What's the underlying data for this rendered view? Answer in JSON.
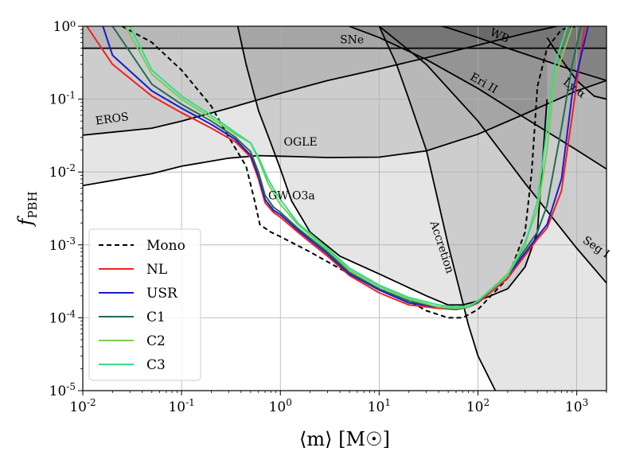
{
  "chart_data": {
    "type": "line",
    "xscale": "log",
    "yscale": "log",
    "xlim": [
      0.01,
      2000
    ],
    "ylim": [
      1e-05,
      1
    ],
    "grid": true,
    "xlabel": "⟨m⟩ [M☉]",
    "ylabel": "fPBH",
    "x_ticks": [
      {
        "base": "10",
        "exp": "-2",
        "value": 0.01
      },
      {
        "base": "10",
        "exp": "-1",
        "value": 0.1
      },
      {
        "base": "10",
        "exp": "0",
        "value": 1
      },
      {
        "base": "10",
        "exp": "1",
        "value": 10
      },
      {
        "base": "10",
        "exp": "2",
        "value": 100
      },
      {
        "base": "10",
        "exp": "3",
        "value": 1000
      }
    ],
    "y_ticks": [
      {
        "base": "10",
        "exp": "-5",
        "value": 1e-05
      },
      {
        "base": "10",
        "exp": "-4",
        "value": 0.0001
      },
      {
        "base": "10",
        "exp": "-3",
        "value": 0.001
      },
      {
        "base": "10",
        "exp": "-2",
        "value": 0.01
      },
      {
        "base": "10",
        "exp": "-1",
        "value": 0.1
      },
      {
        "base": "",
        "exp": "",
        "text": "10⁰",
        "value": 1
      }
    ],
    "constraints": [
      {
        "name": "EROS",
        "label_at": [
          0.02,
          0.048
        ],
        "rotate": -8,
        "x": [
          0.01,
          0.05,
          0.1,
          0.3,
          1,
          3,
          10,
          30,
          100,
          300,
          1000,
          2000
        ],
        "y": [
          0.032,
          0.04,
          0.05,
          0.075,
          0.12,
          0.18,
          0.26,
          0.37,
          0.55,
          0.8,
          1.15,
          1.4
        ]
      },
      {
        "name": "OGLE",
        "label_at": [
          1.6,
          0.023
        ],
        "rotate": 0,
        "x": [
          0.01,
          0.05,
          0.1,
          0.3,
          0.6,
          1,
          3,
          10,
          30,
          100,
          300,
          1000,
          2000
        ],
        "y": [
          0.0065,
          0.0095,
          0.012,
          0.0155,
          0.0168,
          0.0165,
          0.0158,
          0.016,
          0.0195,
          0.033,
          0.063,
          0.13,
          0.18
        ]
      },
      {
        "name": "SNe",
        "label_at": [
          5.3,
          0.58
        ],
        "rotate": 0,
        "x": [
          0.01,
          2000
        ],
        "y": [
          0.5,
          0.5
        ]
      },
      {
        "name": "GW O3a",
        "label_at": [
          1.3,
          0.0042
        ],
        "rotate": 0,
        "x": [
          0.37,
          0.45,
          0.6,
          0.8,
          1,
          1.3,
          2,
          4,
          10,
          30,
          50,
          70,
          100,
          200,
          300,
          400,
          500
        ],
        "y": [
          1,
          0.3,
          0.07,
          0.025,
          0.011,
          0.004,
          0.0015,
          0.0007,
          0.0004,
          0.0002,
          0.00015,
          0.00015,
          0.00017,
          0.00025,
          0.0005,
          0.0015,
          0.1
        ]
      },
      {
        "name": "Accretion",
        "label_at": [
          40,
          0.0009
        ],
        "rotate": 72,
        "x": [
          10,
          15,
          20,
          30,
          50,
          80,
          100,
          150
        ],
        "y": [
          1,
          0.3,
          0.1,
          0.02,
          0.001,
          8e-05,
          3e-05,
          1e-05
        ]
      },
      {
        "name": "WB",
        "label_at": [
          160,
          0.67
        ],
        "rotate": 24,
        "x": [
          20,
          50,
          100,
          200,
          500,
          1000,
          2000
        ],
        "y": [
          1.3,
          0.95,
          0.7,
          0.5,
          0.33,
          0.24,
          0.18
        ]
      },
      {
        "name": "Eri II",
        "label_at": [
          110,
          0.15
        ],
        "rotate": 30,
        "x": [
          3,
          10,
          30,
          100,
          300,
          1000,
          2000
        ],
        "y": [
          1.3,
          0.7,
          0.35,
          0.14,
          0.055,
          0.02,
          0.011
        ]
      },
      {
        "name": "Seg I",
        "label_at": [
          1500,
          0.00085
        ],
        "rotate": 34,
        "x": [
          10,
          30,
          100,
          300,
          1000,
          2000
        ],
        "y": [
          1,
          0.3,
          0.05,
          0.007,
          0.0009,
          0.0003
        ]
      },
      {
        "name": "Ly-α",
        "label_at": [
          900,
          0.13
        ],
        "rotate": 38,
        "x": [
          500,
          700,
          1000,
          1500,
          2000
        ],
        "y": [
          0.7,
          0.35,
          0.18,
          0.11,
          0.1
        ]
      }
    ],
    "series": [
      {
        "name": "Mono",
        "color": "#000000",
        "dash": true,
        "x": [
          0.025,
          0.05,
          0.1,
          0.2,
          0.3,
          0.45,
          0.55,
          0.62,
          0.8,
          1,
          2,
          5,
          10,
          20,
          30,
          50,
          70,
          100,
          200,
          300,
          350,
          400,
          500,
          700,
          1000
        ],
        "y": [
          1,
          0.6,
          0.25,
          0.08,
          0.03,
          0.012,
          0.004,
          0.0019,
          0.0015,
          0.0013,
          0.0008,
          0.0004,
          0.00025,
          0.00017,
          0.000125,
          0.0001,
          0.0001,
          0.00013,
          0.00035,
          0.0015,
          0.01,
          0.15,
          0.5,
          0.9,
          1
        ]
      },
      {
        "name": "NL",
        "color": "#ee2222",
        "dash": false,
        "x": [
          0.011,
          0.02,
          0.05,
          0.1,
          0.2,
          0.35,
          0.5,
          0.6,
          0.7,
          0.85,
          1,
          1.5,
          3,
          5,
          10,
          20,
          40,
          60,
          80,
          100,
          200,
          400,
          500,
          700,
          900,
          1200
        ],
        "y": [
          1,
          0.3,
          0.11,
          0.065,
          0.04,
          0.026,
          0.016,
          0.008,
          0.0038,
          0.0028,
          0.0024,
          0.0015,
          0.0007,
          0.00038,
          0.00022,
          0.00015,
          0.000135,
          0.00013,
          0.00014,
          0.00016,
          0.00035,
          0.0012,
          0.0017,
          0.0055,
          0.06,
          1
        ]
      },
      {
        "name": "USR",
        "color": "#1a1acc",
        "dash": false,
        "x": [
          0.016,
          0.02,
          0.05,
          0.1,
          0.2,
          0.35,
          0.5,
          0.6,
          0.7,
          0.85,
          1,
          1.5,
          3,
          5,
          10,
          20,
          40,
          60,
          80,
          100,
          200,
          400,
          500,
          700,
          900,
          1300
        ],
        "y": [
          1,
          0.4,
          0.13,
          0.075,
          0.045,
          0.028,
          0.017,
          0.009,
          0.0042,
          0.003,
          0.0026,
          0.0016,
          0.00075,
          0.0004,
          0.00024,
          0.00016,
          0.00014,
          0.000135,
          0.000145,
          0.00017,
          0.00038,
          0.0013,
          0.0019,
          0.008,
          0.12,
          1
        ]
      },
      {
        "name": "C1",
        "color": "#1f6e50",
        "dash": false,
        "x": [
          0.02,
          0.05,
          0.1,
          0.2,
          0.35,
          0.5,
          0.6,
          0.7,
          0.85,
          1,
          1.5,
          3,
          5,
          10,
          20,
          40,
          60,
          80,
          100,
          200,
          400,
          500,
          700,
          900,
          1100
        ],
        "y": [
          1,
          0.16,
          0.085,
          0.05,
          0.03,
          0.019,
          0.01,
          0.0048,
          0.0033,
          0.0028,
          0.0017,
          0.0008,
          0.00042,
          0.00025,
          0.00017,
          0.00014,
          0.00013,
          0.00014,
          0.000165,
          0.0004,
          0.0015,
          0.0035,
          0.04,
          0.3,
          1
        ]
      },
      {
        "name": "C2",
        "color": "#7ccc55",
        "dash": false,
        "x": [
          0.027,
          0.05,
          0.1,
          0.2,
          0.35,
          0.5,
          0.6,
          0.75,
          0.9,
          1,
          1.5,
          3,
          5,
          10,
          20,
          40,
          60,
          80,
          100,
          200,
          300,
          400,
          500,
          600,
          900
        ],
        "y": [
          1,
          0.22,
          0.1,
          0.055,
          0.033,
          0.025,
          0.015,
          0.007,
          0.0045,
          0.0036,
          0.0019,
          0.00085,
          0.00045,
          0.00027,
          0.00018,
          0.00014,
          0.000135,
          0.00014,
          0.00017,
          0.0004,
          0.0011,
          0.003,
          0.02,
          0.2,
          1
        ]
      },
      {
        "name": "C3",
        "color": "#33dd88",
        "dash": false,
        "x": [
          0.03,
          0.05,
          0.1,
          0.2,
          0.35,
          0.5,
          0.6,
          0.75,
          0.9,
          1,
          1.5,
          3,
          5,
          10,
          20,
          40,
          60,
          80,
          100,
          200,
          300,
          400,
          500,
          600,
          800
        ],
        "y": [
          1,
          0.25,
          0.11,
          0.06,
          0.035,
          0.025,
          0.016,
          0.008,
          0.0052,
          0.0042,
          0.002,
          0.0009,
          0.00048,
          0.00028,
          0.00019,
          0.00015,
          0.00014,
          0.000145,
          0.00017,
          0.00038,
          0.001,
          0.004,
          0.04,
          0.3,
          1
        ]
      }
    ],
    "legend_position": "lower-left",
    "legend": [
      "Mono",
      "NL",
      "USR",
      "C1",
      "C2",
      "C3"
    ]
  }
}
